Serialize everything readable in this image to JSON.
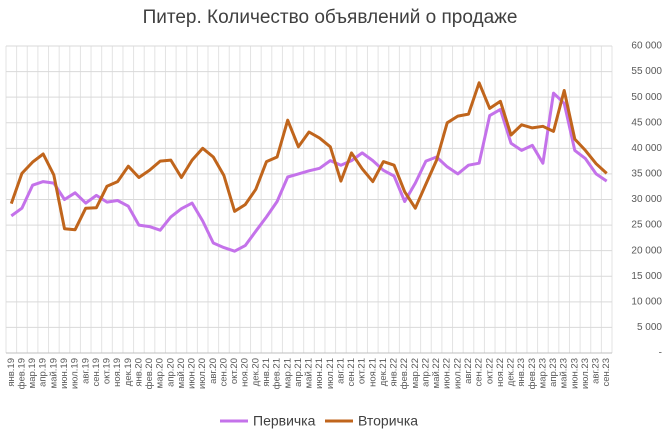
{
  "chart_data": {
    "type": "line",
    "title": "Питер. Количество объявлений о продаже",
    "categories": [
      "янв.19",
      "фев.19",
      "мар.19",
      "апр.19",
      "май.19",
      "июн.19",
      "июл.19",
      "авг.19",
      "сен.19",
      "окт.19",
      "ноя.19",
      "дек.19",
      "янв.20",
      "фев.20",
      "мар.20",
      "апр.20",
      "май.20",
      "июн.20",
      "июл.20",
      "авг.20",
      "сен.20",
      "окт.20",
      "ноя.20",
      "дек.20",
      "янв.21",
      "фев.21",
      "мар.21",
      "апр.21",
      "май.21",
      "июн.21",
      "июл.21",
      "авг.21",
      "сен.21",
      "окт.21",
      "ноя.21",
      "дек.21",
      "янв.22",
      "фев.22",
      "мар.22",
      "апр.22",
      "май.22",
      "июн.22",
      "июл.22",
      "авг.22",
      "сен.22",
      "окт.22",
      "ноя.22",
      "дек.22",
      "янв.23",
      "фев.23",
      "мар.23",
      "апр.23",
      "май.23",
      "июн.23",
      "июл.23",
      "авг.23",
      "сен.23"
    ],
    "series": [
      {
        "name": "Первичка",
        "color": "#c472ea",
        "values": [
          26800,
          28300,
          32800,
          33500,
          33200,
          30000,
          31300,
          29300,
          30800,
          29500,
          29800,
          28700,
          25000,
          24700,
          24000,
          26600,
          28200,
          29300,
          25800,
          21500,
          20600,
          19900,
          21000,
          23800,
          26600,
          29600,
          34400,
          35000,
          35600,
          36100,
          37600,
          36700,
          37600,
          39100,
          37600,
          35700,
          34600,
          29600,
          33200,
          37500,
          38300,
          36400,
          35000,
          36700,
          37100,
          46400,
          47600,
          41000,
          39600,
          40600,
          37100,
          50800,
          48800,
          39600,
          38000,
          35000,
          33600
        ]
      },
      {
        "name": "Вторичка",
        "color": "#c0651c",
        "values": [
          29200,
          35100,
          37300,
          38900,
          34800,
          24300,
          24100,
          28300,
          28400,
          32600,
          33500,
          36500,
          34300,
          35700,
          37500,
          37700,
          34300,
          37700,
          40000,
          38300,
          34700,
          27700,
          29000,
          32000,
          37400,
          38300,
          45500,
          40300,
          43200,
          42000,
          40300,
          33600,
          39100,
          36000,
          33500,
          37400,
          36700,
          31500,
          28300,
          33000,
          37700,
          45000,
          46300,
          46700,
          52800,
          47800,
          49200,
          42600,
          44600,
          44000,
          44300,
          43300,
          51300,
          41800,
          39600,
          37000,
          35100
        ]
      }
    ],
    "ylim": [
      0,
      60000
    ],
    "yticks": [
      {
        "value": 0,
        "label": "-"
      },
      {
        "value": 5000,
        "label": "5 000"
      },
      {
        "value": 10000,
        "label": "10 000"
      },
      {
        "value": 15000,
        "label": "15 000"
      },
      {
        "value": 20000,
        "label": "20 000"
      },
      {
        "value": 25000,
        "label": "25 000"
      },
      {
        "value": 30000,
        "label": "30 000"
      },
      {
        "value": 35000,
        "label": "35 000"
      },
      {
        "value": 40000,
        "label": "40 000"
      },
      {
        "value": 45000,
        "label": "45 000"
      },
      {
        "value": 50000,
        "label": "50 000"
      },
      {
        "value": 55000,
        "label": "55 000"
      },
      {
        "value": 60000,
        "label": "60 000"
      }
    ],
    "grid": true
  }
}
